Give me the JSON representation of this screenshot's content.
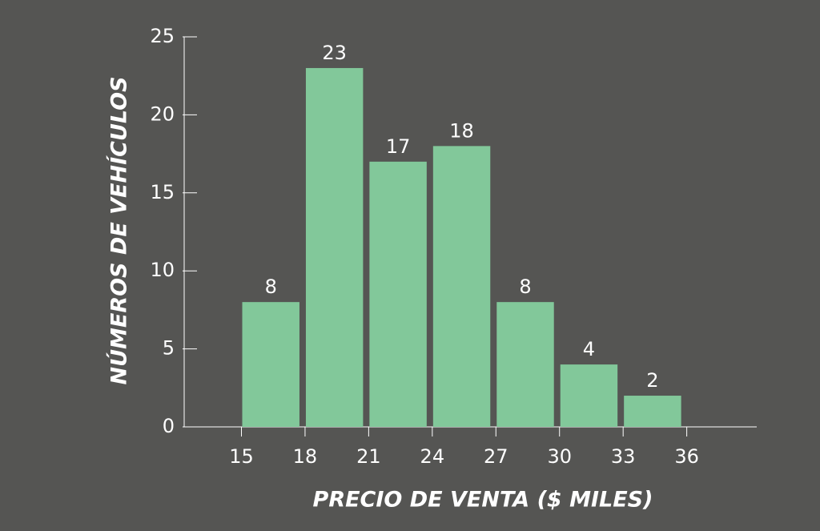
{
  "chart_data": {
    "type": "histogram",
    "xlabel": "PRECIO DE VENTA ($ MILES)",
    "ylabel": "NÚMEROS DE VEHÍCULOS",
    "bins": [
      15,
      18,
      21,
      24,
      27,
      30,
      33,
      36
    ],
    "values": [
      8,
      23,
      17,
      18,
      8,
      4,
      2
    ],
    "color": "#82c89a",
    "xlim": [
      12.3,
      39.3
    ],
    "xticks": [
      15,
      18,
      21,
      24,
      27,
      30,
      33,
      36
    ],
    "ylim": [
      0,
      25
    ],
    "yticks": [
      0,
      5,
      10,
      15,
      20,
      25
    ],
    "grid": false
  }
}
